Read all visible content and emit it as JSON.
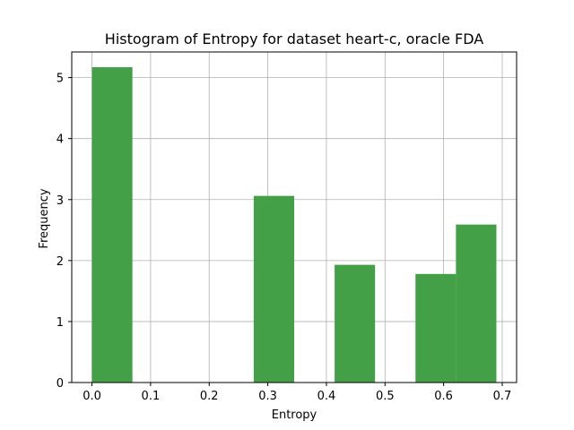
{
  "chart_data": {
    "type": "bar",
    "title": "Histogram of Entropy for dataset heart-c, oracle FDA",
    "xlabel": "Entropy",
    "ylabel": "Frequency",
    "xlim": [
      -0.0345,
      0.7245
    ],
    "ylim": [
      0,
      5.42
    ],
    "grid": true,
    "bar_color": "#43a047",
    "x_ticks": [
      0.0,
      0.1,
      0.2,
      0.3,
      0.4,
      0.5,
      0.6,
      0.7
    ],
    "x_tick_labels": [
      "0.0",
      "0.1",
      "0.2",
      "0.3",
      "0.4",
      "0.5",
      "0.6",
      "0.7"
    ],
    "y_ticks": [
      0,
      1,
      2,
      3,
      4,
      5
    ],
    "y_tick_labels": [
      "0",
      "1",
      "2",
      "3",
      "4",
      "5"
    ],
    "bins": [
      {
        "x0": 0.0,
        "x1": 0.069,
        "value": 5.17
      },
      {
        "x0": 0.069,
        "x1": 0.138,
        "value": 0
      },
      {
        "x0": 0.138,
        "x1": 0.207,
        "value": 0
      },
      {
        "x0": 0.207,
        "x1": 0.276,
        "value": 0
      },
      {
        "x0": 0.276,
        "x1": 0.345,
        "value": 3.06
      },
      {
        "x0": 0.345,
        "x1": 0.414,
        "value": 0
      },
      {
        "x0": 0.414,
        "x1": 0.483,
        "value": 1.93
      },
      {
        "x0": 0.483,
        "x1": 0.552,
        "value": 0
      },
      {
        "x0": 0.552,
        "x1": 0.621,
        "value": 1.78
      },
      {
        "x0": 0.621,
        "x1": 0.69,
        "value": 2.59
      }
    ]
  }
}
